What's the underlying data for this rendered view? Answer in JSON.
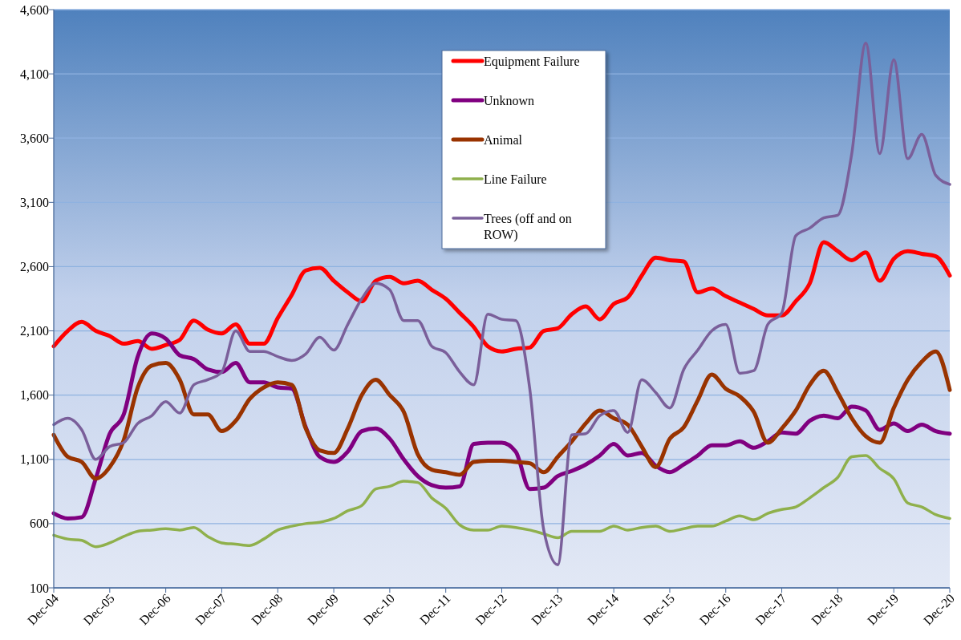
{
  "chart_data": {
    "type": "line",
    "categories": [
      "Dec-04",
      null,
      null,
      null,
      "Dec-05",
      null,
      null,
      null,
      "Dec-06",
      null,
      null,
      null,
      "Dec-07",
      null,
      null,
      null,
      "Dec-08",
      null,
      null,
      null,
      "Dec-09",
      null,
      null,
      null,
      "Dec-10",
      null,
      null,
      null,
      "Dec-11",
      null,
      null,
      null,
      "Dec-12",
      null,
      null,
      null,
      "Dec-13",
      null,
      null,
      null,
      "Dec-14",
      null,
      null,
      null,
      "Dec-15",
      null,
      null,
      null,
      "Dec-16",
      null,
      null,
      null,
      "Dec-17",
      null,
      null,
      null,
      "Dec-18",
      null,
      null,
      null,
      "Dec-19",
      null,
      null,
      null,
      "Dec-20"
    ],
    "series": [
      {
        "name": "Equipment Failure",
        "color": "#ff0000",
        "values": [
          1980,
          2100,
          2170,
          2100,
          2060,
          2000,
          2020,
          1960,
          1990,
          2030,
          2180,
          2110,
          2080,
          2150,
          2000,
          2000,
          2200,
          2380,
          2570,
          2590,
          2490,
          2400,
          2330,
          2490,
          2520,
          2470,
          2490,
          2420,
          2350,
          2240,
          2130,
          1980,
          1940,
          1960,
          1970,
          2100,
          2120,
          2230,
          2290,
          2190,
          2310,
          2360,
          2530,
          2670,
          2650,
          2640,
          2400,
          2430,
          2370,
          2320,
          2270,
          2220,
          2220,
          2330,
          2470,
          2790,
          2720,
          2650,
          2710,
          2490,
          2660,
          2720,
          2700,
          2680,
          2530
        ]
      },
      {
        "name": "Unknown",
        "color": "#800080",
        "values": [
          680,
          640,
          650,
          950,
          1300,
          1450,
          1900,
          2080,
          2040,
          1910,
          1880,
          1800,
          1780,
          1850,
          1700,
          1700,
          1660,
          1650,
          1350,
          1120,
          1080,
          1160,
          1320,
          1340,
          1260,
          1100,
          970,
          900,
          880,
          890,
          1220,
          1230,
          1230,
          1160,
          870,
          880,
          970,
          1010,
          1060,
          1130,
          1220,
          1130,
          1150,
          1050,
          1000,
          1060,
          1130,
          1210,
          1210,
          1240,
          1190,
          1240,
          1310,
          1300,
          1400,
          1440,
          1420,
          1510,
          1480,
          1330,
          1380,
          1320,
          1370,
          1320,
          1300
        ]
      },
      {
        "name": "Animal",
        "color": "#993300",
        "values": [
          1290,
          1120,
          1080,
          950,
          1040,
          1250,
          1660,
          1830,
          1850,
          1720,
          1450,
          1450,
          1320,
          1400,
          1570,
          1660,
          1700,
          1680,
          1340,
          1170,
          1150,
          1340,
          1600,
          1720,
          1600,
          1470,
          1140,
          1020,
          1000,
          980,
          1080,
          1090,
          1090,
          1080,
          1070,
          1000,
          1120,
          1240,
          1380,
          1480,
          1420,
          1370,
          1200,
          1040,
          1260,
          1350,
          1560,
          1760,
          1650,
          1590,
          1470,
          1230,
          1340,
          1480,
          1680,
          1790,
          1620,
          1420,
          1280,
          1230,
          1500,
          1720,
          1860,
          1940,
          1640
        ]
      },
      {
        "name": "Line Failure",
        "color": "#8fb04c",
        "values": [
          510,
          480,
          470,
          420,
          450,
          500,
          540,
          550,
          560,
          550,
          570,
          500,
          450,
          440,
          430,
          480,
          550,
          580,
          600,
          610,
          640,
          700,
          740,
          870,
          890,
          930,
          920,
          800,
          720,
          590,
          550,
          550,
          580,
          570,
          550,
          520,
          490,
          540,
          540,
          540,
          580,
          550,
          570,
          580,
          540,
          560,
          580,
          580,
          620,
          660,
          630,
          680,
          710,
          730,
          800,
          880,
          960,
          1120,
          1130,
          1030,
          950,
          760,
          730,
          670,
          640
        ]
      },
      {
        "name": "Trees (off and on ROW)",
        "color": "#7a5f9a",
        "values": [
          1370,
          1420,
          1330,
          1100,
          1200,
          1230,
          1380,
          1440,
          1550,
          1460,
          1680,
          1720,
          1780,
          2100,
          1940,
          1940,
          1900,
          1870,
          1920,
          2050,
          1950,
          2150,
          2350,
          2470,
          2420,
          2180,
          2180,
          1980,
          1930,
          1780,
          1680,
          2230,
          2190,
          2180,
          1650,
          550,
          280,
          1290,
          1300,
          1440,
          1480,
          1310,
          1720,
          1620,
          1500,
          1800,
          1950,
          2100,
          2150,
          1770,
          1790,
          2150,
          2240,
          2840,
          2900,
          2980,
          3000,
          3480,
          4340,
          3480,
          4210,
          3440,
          3630,
          3310,
          3240
        ]
      }
    ],
    "ylim": [
      100,
      4600
    ],
    "yticks": [
      {
        "value": 100,
        "label": "100"
      },
      {
        "value": 600,
        "label": "600"
      },
      {
        "value": 1100,
        "label": "1,100"
      },
      {
        "value": 1600,
        "label": "1,600"
      },
      {
        "value": 2100,
        "label": "2,100"
      },
      {
        "value": 2600,
        "label": "2,600"
      },
      {
        "value": 3100,
        "label": "3,100"
      },
      {
        "value": 3600,
        "label": "3,600"
      },
      {
        "value": 4100,
        "label": "4,100"
      },
      {
        "value": 4600,
        "label": "4,600"
      }
    ],
    "grid": "y",
    "legend": "top",
    "marker": "none",
    "line_style": "solid"
  }
}
